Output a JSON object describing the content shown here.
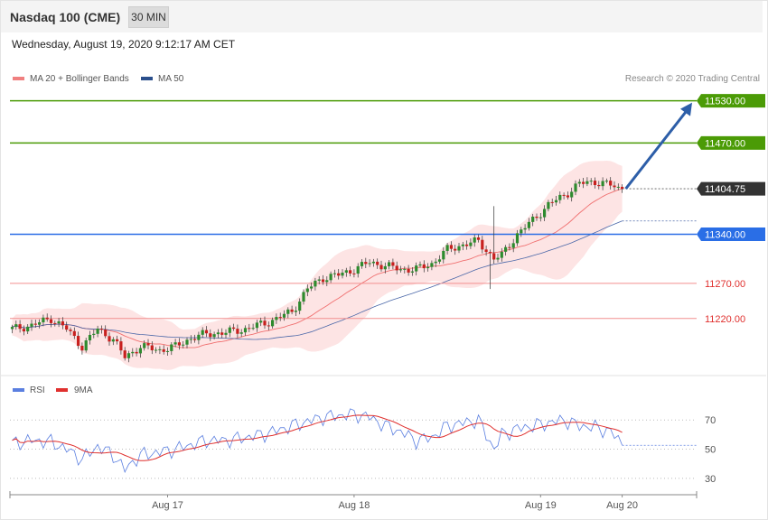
{
  "header": {
    "title": "Nasdaq 100 (CME)",
    "timeframe": "30 MIN",
    "datetime": "Wednesday, August 19, 2020 9:12:17 AM CET"
  },
  "legend": {
    "ma20": "MA 20 + Bollinger Bands",
    "ma50": "MA 50",
    "credit": "Research © 2020 Trading Central",
    "rsi": "RSI",
    "rsi_ma": "9MA"
  },
  "colors": {
    "green": "#4b9b06",
    "blue": "#2a6ee6",
    "red": "#e0302e",
    "pivot_red": "#f28f8f",
    "candle_up": "#2e8b2e",
    "candle_down": "#c8201e",
    "ma20": "#f07070",
    "ma50": "#4a67a8",
    "band": "#fde4e4",
    "arrow": "#2d5ea8",
    "rsi_line": "#5b7fe0",
    "rsi_ma_line": "#e0302e",
    "price_tag": "#333333"
  },
  "chart_data": {
    "type": "candlestick",
    "price_axis": {
      "min": 11140,
      "max": 11545
    },
    "levels": [
      {
        "price": 11530.0,
        "label": "11530.00",
        "kind": "resistance",
        "color": "green"
      },
      {
        "price": 11470.0,
        "label": "11470.00",
        "kind": "resistance",
        "color": "green"
      },
      {
        "price": 11404.75,
        "label": "11404.75",
        "kind": "last",
        "color": "dark"
      },
      {
        "price": 11340.0,
        "label": "11340.00",
        "kind": "pivot",
        "color": "blue"
      },
      {
        "price": 11270.0,
        "label": "11270.00",
        "kind": "support",
        "color": "red"
      },
      {
        "price": 11220.0,
        "label": "11220.00",
        "kind": "support",
        "color": "red"
      }
    ],
    "x_ticks": [
      {
        "label": "Aug 17",
        "index": 40
      },
      {
        "label": "Aug 18",
        "index": 88
      },
      {
        "label": "Aug 19",
        "index": 136
      },
      {
        "label": "Aug 20",
        "index": 157
      }
    ],
    "rsi_levels": [
      70,
      50,
      30
    ],
    "rsi_range": [
      20,
      85
    ],
    "projection_target": 11530,
    "anchors": [
      [
        0,
        11205
      ],
      [
        5,
        11210
      ],
      [
        10,
        11220
      ],
      [
        14,
        11205
      ],
      [
        18,
        11180
      ],
      [
        22,
        11205
      ],
      [
        26,
        11190
      ],
      [
        29,
        11165
      ],
      [
        33,
        11180
      ],
      [
        38,
        11175
      ],
      [
        42,
        11180
      ],
      [
        46,
        11192
      ],
      [
        50,
        11198
      ],
      [
        55,
        11200
      ],
      [
        60,
        11205
      ],
      [
        66,
        11215
      ],
      [
        72,
        11230
      ],
      [
        76,
        11262
      ],
      [
        80,
        11278
      ],
      [
        84,
        11282
      ],
      [
        88,
        11290
      ],
      [
        92,
        11300
      ],
      [
        96,
        11295
      ],
      [
        100,
        11290
      ],
      [
        104,
        11290
      ],
      [
        108,
        11298
      ],
      [
        112,
        11318
      ],
      [
        116,
        11325
      ],
      [
        120,
        11330
      ],
      [
        124,
        11305
      ],
      [
        126,
        11310
      ],
      [
        130,
        11340
      ],
      [
        134,
        11360
      ],
      [
        138,
        11382
      ],
      [
        142,
        11395
      ],
      [
        146,
        11412
      ],
      [
        150,
        11415
      ],
      [
        154,
        11410
      ],
      [
        157,
        11403
      ]
    ],
    "rsi_anchors": [
      [
        0,
        54
      ],
      [
        5,
        56
      ],
      [
        10,
        55
      ],
      [
        14,
        50
      ],
      [
        18,
        43
      ],
      [
        22,
        52
      ],
      [
        26,
        46
      ],
      [
        29,
        36
      ],
      [
        33,
        46
      ],
      [
        38,
        48
      ],
      [
        42,
        50
      ],
      [
        46,
        53
      ],
      [
        50,
        56
      ],
      [
        55,
        56
      ],
      [
        60,
        58
      ],
      [
        66,
        61
      ],
      [
        72,
        66
      ],
      [
        76,
        69
      ],
      [
        80,
        72
      ],
      [
        84,
        73
      ],
      [
        88,
        74
      ],
      [
        92,
        72
      ],
      [
        96,
        66
      ],
      [
        100,
        62
      ],
      [
        104,
        56
      ],
      [
        108,
        58
      ],
      [
        112,
        66
      ],
      [
        116,
        68
      ],
      [
        120,
        70
      ],
      [
        124,
        50
      ],
      [
        126,
        60
      ],
      [
        130,
        64
      ],
      [
        134,
        66
      ],
      [
        138,
        68
      ],
      [
        142,
        70
      ],
      [
        146,
        66
      ],
      [
        150,
        65
      ],
      [
        154,
        62
      ],
      [
        157,
        54
      ]
    ]
  }
}
